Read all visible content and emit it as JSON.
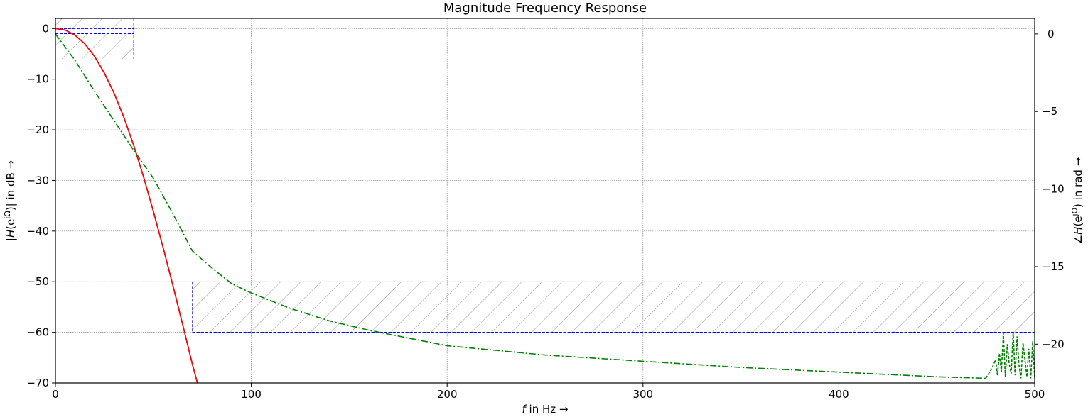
{
  "chart_data": {
    "type": "line",
    "title": "Magnitude Frequency Response",
    "xlabel": "f in Hz →",
    "ylabel_left": "|H(e^jΩ)| in dB →",
    "ylabel_right": "∠H(e^jΩ) in rad →",
    "xlim": [
      0,
      500
    ],
    "ylim_left": [
      -70,
      2
    ],
    "ylim_right": [
      -22.5,
      1
    ],
    "x_ticks": [
      0,
      100,
      200,
      300,
      400,
      500
    ],
    "y_ticks_left": [
      0,
      -10,
      -20,
      -30,
      -40,
      -50,
      -60,
      -70
    ],
    "y_ticks_right": [
      0,
      -5,
      -10,
      -15,
      -20
    ],
    "tick_text": {
      "x": [
        "0",
        "100",
        "200",
        "300",
        "400",
        "500"
      ],
      "left": [
        "0",
        "−10",
        "−20",
        "−30",
        "−40",
        "−50",
        "−60",
        "−70"
      ],
      "right": [
        "0",
        "−5",
        "−10",
        "−15",
        "−20"
      ]
    },
    "grid": true,
    "series": [
      {
        "axis": "left",
        "color": "#ff0000",
        "style": "solid",
        "x": [
          0,
          5,
          10,
          15,
          20,
          25,
          30,
          35,
          40,
          45,
          50,
          55,
          60,
          65,
          70,
          72.5
        ],
        "y": [
          0,
          -0.3,
          -1.3,
          -3,
          -5.5,
          -8.8,
          -12.8,
          -17.6,
          -23.1,
          -29.3,
          -36.1,
          -43.3,
          -50.8,
          -58.5,
          -66.4,
          -70
        ]
      },
      {
        "axis": "right",
        "color": "#008000",
        "style": "dash-dot",
        "x": [
          0,
          10,
          20,
          30,
          40,
          50,
          60,
          70,
          80,
          90,
          100,
          120,
          140,
          160,
          180,
          200,
          250,
          300,
          350,
          400,
          450,
          475
        ],
        "y": [
          0,
          -1.7,
          -3.7,
          -5.6,
          -7.5,
          -9.3,
          -11.6,
          -14,
          -15.1,
          -16.1,
          -16.7,
          -17.7,
          -18.5,
          -19.1,
          -19.6,
          -20.1,
          -20.7,
          -21.1,
          -21.5,
          -21.8,
          -22.1,
          -22.2
        ]
      },
      {
        "axis": "right",
        "color": "#008000",
        "style": "dashed",
        "x": [
          475,
          478,
          480,
          481,
          482,
          483,
          484,
          485,
          486,
          487,
          488,
          489,
          490,
          491,
          492,
          493,
          494,
          495,
          496,
          497,
          498,
          499,
          500
        ],
        "y": [
          -22.2,
          -21.6,
          -21.0,
          -22.0,
          -20.6,
          -21.8,
          -19.3,
          -22.1,
          -20.0,
          -21.3,
          -21.9,
          -19.2,
          -22.0,
          -19.5,
          -21.4,
          -22.2,
          -19.9,
          -21.0,
          -22.1,
          -20.3,
          -22.2,
          -19.8,
          -22.2
        ]
      }
    ],
    "specification": {
      "color": "#0000ff",
      "style": "dashed",
      "passband": {
        "f_edge": 40,
        "upper_db": 0,
        "lower_db": -1,
        "floor_db": -6
      },
      "stopband": {
        "f_edge": 70,
        "max_db": -60,
        "marker_top_db": -50
      }
    }
  }
}
